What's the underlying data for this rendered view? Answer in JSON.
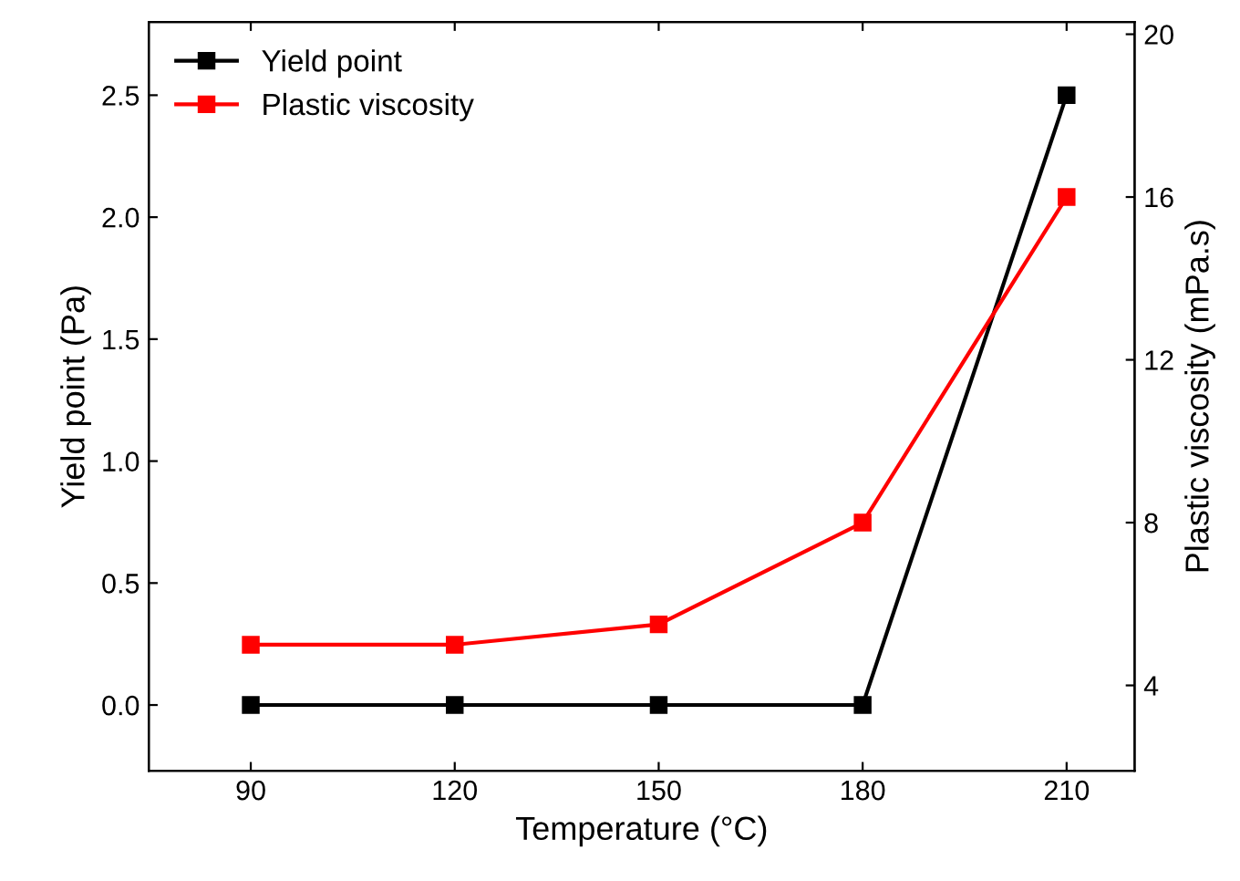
{
  "chart_data": {
    "type": "line",
    "xlabel": "Temperature (°C)",
    "ylabel": "Yield point (Pa)",
    "y2label": "Plastic viscosity (mPa.s)",
    "x": [
      90,
      120,
      150,
      180,
      210
    ],
    "series": [
      {
        "name": "Yield point",
        "color": "#000000",
        "values": [
          0,
          0,
          0,
          0,
          2.5
        ]
      },
      {
        "name": "Plastic viscosity",
        "color": "#ff0000",
        "axis": "y2",
        "values": [
          5,
          5,
          5.5,
          8,
          16
        ]
      }
    ],
    "xlim": [
      75,
      220
    ],
    "xticks": [
      90,
      120,
      150,
      180,
      210
    ],
    "ylim": [
      -0.27,
      2.8
    ],
    "yticks": [
      {
        "value": 0,
        "label": "0.0"
      },
      0.5,
      {
        "value": 1,
        "label": "1.0"
      },
      1.5,
      {
        "value": 2,
        "label": "2.0"
      },
      2.5
    ],
    "y2lim": [
      1.9,
      20.3
    ],
    "y2ticks": [
      4,
      8,
      12,
      16,
      20
    ],
    "marker": "square",
    "line_style": "solid",
    "legend": "top left",
    "grid": false
  }
}
